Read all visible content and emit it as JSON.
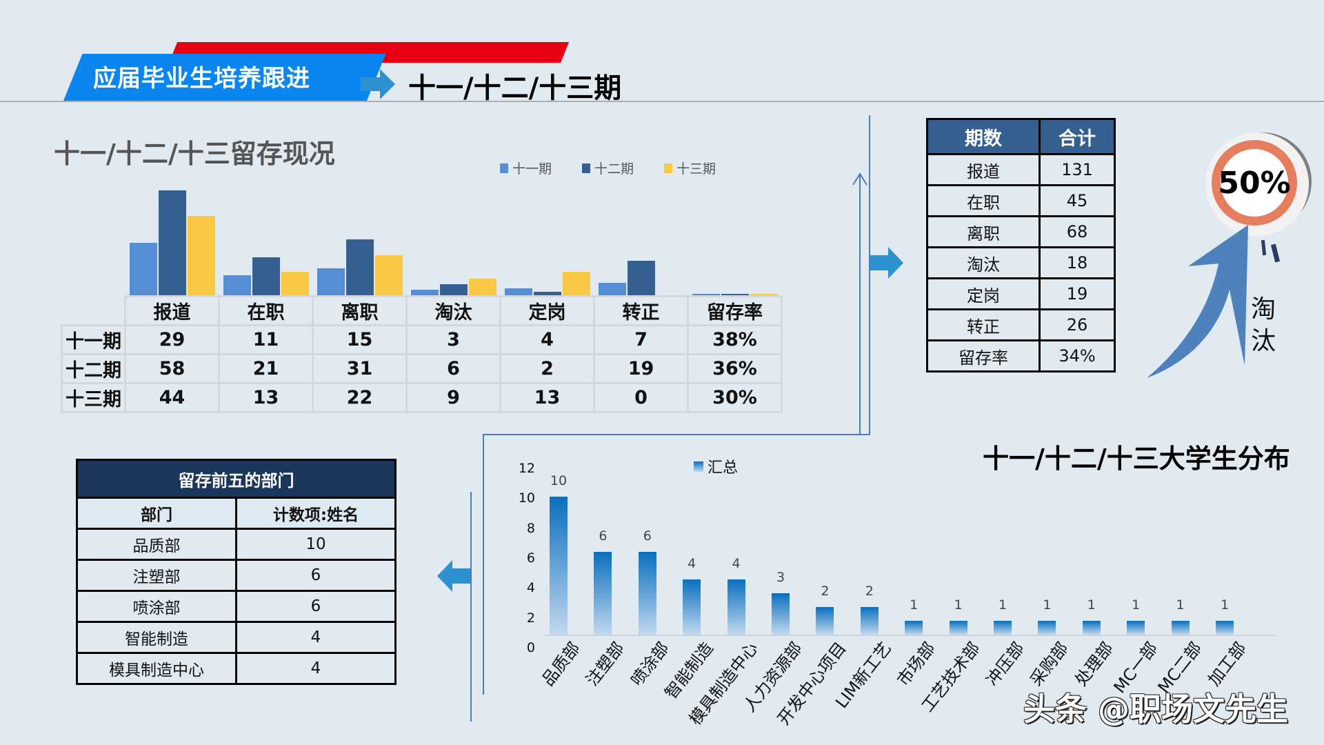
{
  "header": {
    "title": "应届毕业生培养跟进",
    "subtitle": "十一/十二/十三期"
  },
  "retention": {
    "title": "十一/十二/十三留存现况",
    "legend": [
      "十一期",
      "十二期",
      "十三期"
    ],
    "columns": [
      "报道",
      "在职",
      "离职",
      "淘汰",
      "定岗",
      "转正",
      "留存率"
    ],
    "rows": [
      {
        "label": "十一期",
        "values": [
          "29",
          "11",
          "15",
          "3",
          "4",
          "7",
          "38%"
        ]
      },
      {
        "label": "十二期",
        "values": [
          "58",
          "21",
          "31",
          "6",
          "2",
          "19",
          "36%"
        ]
      },
      {
        "label": "十三期",
        "values": [
          "44",
          "13",
          "22",
          "9",
          "13",
          "0",
          "30%"
        ]
      }
    ]
  },
  "totals": {
    "headers": [
      "期数",
      "合计"
    ],
    "rows": [
      {
        "label": "报道",
        "value": "131"
      },
      {
        "label": "在职",
        "value": "45"
      },
      {
        "label": "离职",
        "value": "68"
      },
      {
        "label": "淘汰",
        "value": "18"
      },
      {
        "label": "定岗",
        "value": "19"
      },
      {
        "label": "转正",
        "value": "26"
      },
      {
        "label": "留存率",
        "value": "34%"
      }
    ]
  },
  "badge": {
    "value": "50%",
    "label": "淘汰"
  },
  "top_five": {
    "title": "留存前五的部门",
    "headers": [
      "部门",
      "计数项:姓名"
    ],
    "rows": [
      {
        "dept": "品质部",
        "count": "10"
      },
      {
        "dept": "注塑部",
        "count": "6"
      },
      {
        "dept": "喷涂部",
        "count": "6"
      },
      {
        "dept": "智能制造",
        "count": "4"
      },
      {
        "dept": "模具制造中心",
        "count": "4"
      }
    ]
  },
  "distribution": {
    "title": "十一/十二/十三大学生分布",
    "legend": "汇总",
    "yticks": [
      "12",
      "10",
      "8",
      "6",
      "4",
      "2",
      "0"
    ]
  },
  "watermark": "头条 @职场文先生",
  "colors": {
    "series_11": "#558ed5",
    "series_12": "#366092",
    "series_13": "#fac843",
    "header_blue": "#0a86f0",
    "header_red": "#e60012",
    "table_header": "#355f91",
    "badge_ring": "#e47e5e"
  },
  "chart_data": [
    {
      "type": "bar",
      "title": "十一/十二/十三留存现况",
      "categories": [
        "报道",
        "在职",
        "离职",
        "淘汰",
        "定岗",
        "转正",
        "留存率"
      ],
      "series": [
        {
          "name": "十一期",
          "values": [
            29,
            11,
            15,
            3,
            4,
            7,
            0.38
          ]
        },
        {
          "name": "十二期",
          "values": [
            58,
            21,
            31,
            6,
            2,
            19,
            0.36
          ]
        },
        {
          "name": "十三期",
          "values": [
            44,
            13,
            22,
            9,
            13,
            0,
            0.3
          ]
        }
      ],
      "legend_position": "top",
      "grid": false,
      "xlabel": "",
      "ylabel": ""
    },
    {
      "type": "bar",
      "title": "十一/十二/十三大学生分布",
      "categories": [
        "品质部",
        "注塑部",
        "喷涂部",
        "智能制造",
        "模具制造中心",
        "人力资源部",
        "开发中心项目",
        "LIM新工艺",
        "市场部",
        "工艺技术部",
        "冲压部",
        "采购部",
        "处理部",
        "MC一部",
        "MC二部",
        "加工部"
      ],
      "series": [
        {
          "name": "汇总",
          "values": [
            10,
            6,
            6,
            4,
            4,
            3,
            2,
            2,
            1,
            1,
            1,
            1,
            1,
            1,
            1,
            1
          ]
        }
      ],
      "ylim": [
        0,
        12
      ],
      "yticks": [
        0,
        2,
        4,
        6,
        8,
        10,
        12
      ],
      "legend_position": "top",
      "grid": false,
      "xlabel": "",
      "ylabel": ""
    }
  ]
}
